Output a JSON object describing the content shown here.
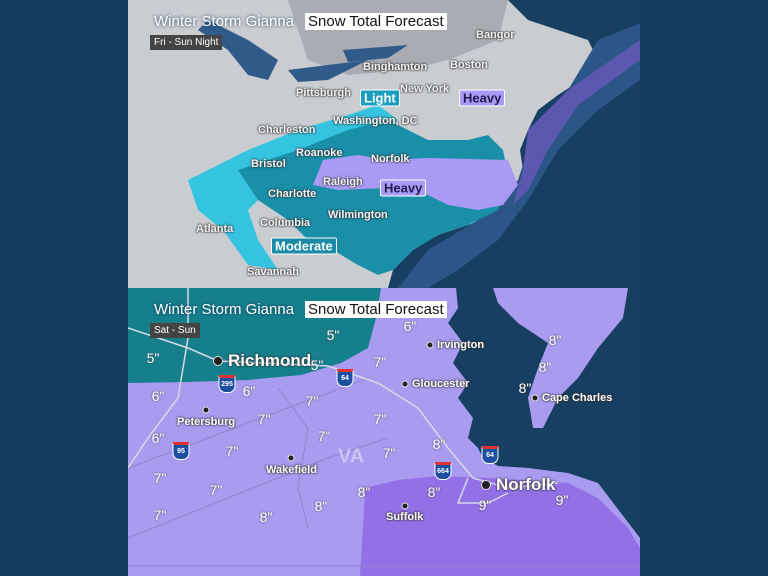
{
  "top_map": {
    "title_storm": "Winter Storm Gianna",
    "title_forecast": "Snow Total Forecast",
    "period": "Fri - Sun Night",
    "cities": [
      "Bangor",
      "Binghamton",
      "Boston",
      "Pittsburgh",
      "New York",
      "Washington, DC",
      "Charleston",
      "Roanoke",
      "Norfolk",
      "Bristol",
      "Raleigh",
      "Charlotte",
      "Wilmington",
      "Columbia",
      "Atlanta",
      "Savannah"
    ],
    "badges": {
      "light": "Light",
      "heavy_north": "Heavy",
      "heavy_south": "Heavy",
      "moderate": "Moderate"
    },
    "colors": {
      "land": "#c9ccd0",
      "ocean": "#173f61",
      "light": "#34c4e0",
      "moderate": "#1a8fa8",
      "heavy": "#a99af5"
    }
  },
  "bottom_map": {
    "title_storm": "Winter Storm Gianna",
    "title_forecast": "Snow Total Forecast",
    "period": "Sat - Sun",
    "state": "VA",
    "cities": {
      "richmond": "Richmond",
      "irvington": "Irvington",
      "gloucester": "Gloucester",
      "cape_charles": "Cape Charles",
      "petersburg": "Petersburg",
      "wakefield": "Wakefield",
      "norfolk": "Norfolk",
      "suffolk": "Suffolk"
    },
    "interstates": [
      "295",
      "64",
      "95",
      "664",
      "64"
    ],
    "amounts": [
      "5\"",
      "6\"",
      "5\"",
      "5\"",
      "7\"",
      "8\"",
      "8\"",
      "8\"",
      "6\"",
      "6\"",
      "7\"",
      "7\"",
      "7\"",
      "6\"",
      "7\"",
      "7\"",
      "7\"",
      "8\"",
      "7\"",
      "7\"",
      "8\"",
      "8\"",
      "9\"",
      "9\"",
      "8\"",
      "7\"",
      "8\""
    ],
    "colors": {
      "5in": "#157f8c",
      "6_8in": "#a99cf0",
      "9in": "#9370e6",
      "water": "#173f61"
    }
  }
}
